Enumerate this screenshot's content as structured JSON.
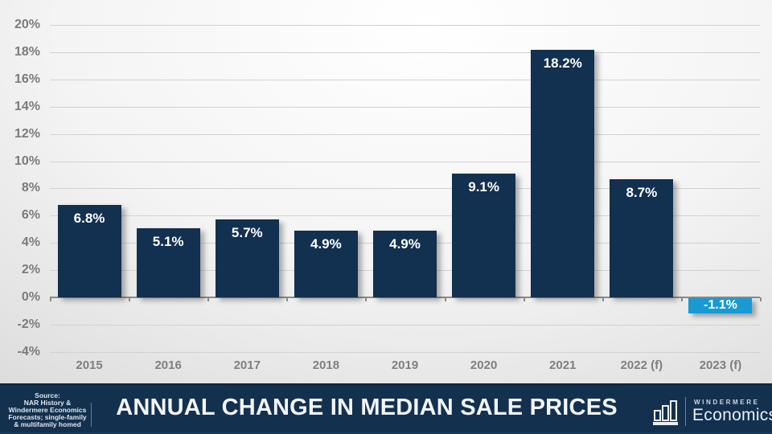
{
  "chart_data": {
    "type": "bar",
    "title": "ANNUAL CHANGE IN MEDIAN SALE PRICES",
    "categories": [
      "2015",
      "2016",
      "2017",
      "2018",
      "2019",
      "2020",
      "2021",
      "2022 (f)",
      "2023 (f)"
    ],
    "values": [
      6.8,
      5.1,
      5.7,
      4.9,
      4.9,
      9.1,
      18.2,
      8.7,
      -1.1
    ],
    "value_labels": [
      "6.8%",
      "5.1%",
      "5.7%",
      "4.9%",
      "4.9%",
      "9.1%",
      "18.2%",
      "8.7%",
      "-1.1%"
    ],
    "bar_colors": [
      "#12304f",
      "#12304f",
      "#12304f",
      "#12304f",
      "#12304f",
      "#12304f",
      "#12304f",
      "#12304f",
      "#189ad5"
    ],
    "ylim": [
      -4,
      20
    ],
    "ytick_step": 2,
    "ytick_labels": [
      "20%",
      "18%",
      "16%",
      "14%",
      "12%",
      "10%",
      "8%",
      "6%",
      "4%",
      "2%",
      "0%",
      "-2%",
      "-4%"
    ],
    "grid": true,
    "legend": "none",
    "xlabel": "",
    "ylabel": ""
  },
  "footer": {
    "source_text": "Source:\nNAR History &\nWindermere Economics\nForecasts; single-family\n& multifamily homed",
    "title": "ANNUAL CHANGE IN MEDIAN SALE PRICES",
    "logo": {
      "icon": "bar-chart-icon",
      "brand_top": "WINDERMERE",
      "brand_bottom": "Economics"
    }
  },
  "colors": {
    "bar_navy": "#12304f",
    "bar_forecast_blue": "#189ad5",
    "footer_navy": "#14304f",
    "grid_gray": "#d2d2d2",
    "axis_gray": "#8a8a8a",
    "tick_label_gray": "#7f7f7f",
    "title_white": "#f2f5f8"
  }
}
